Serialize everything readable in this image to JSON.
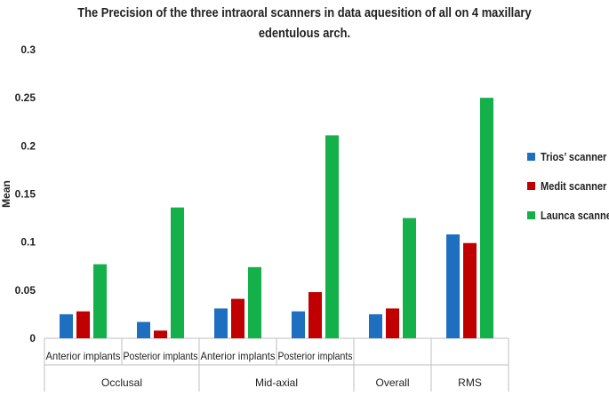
{
  "chart_data": {
    "type": "bar",
    "title_lines": [
      "The Precision of the three intraoral scanners in data aquesition of all on 4 maxillary",
      "edentulous arch."
    ],
    "ylabel": "Mean",
    "xlabel": "",
    "ylim": [
      0,
      0.3
    ],
    "yticks": [
      "0",
      "0.05",
      "0.1",
      "0.15",
      "0.2",
      "0.25",
      "0.3"
    ],
    "categories": [
      "Anterior implants",
      "Posterior implants",
      "Anterior implants",
      "Posterior implants",
      "",
      ""
    ],
    "groups": [
      {
        "label": "Occlusal",
        "span": 2
      },
      {
        "label": "Mid-axial",
        "span": 2
      },
      {
        "label": "Overall",
        "span": 1
      },
      {
        "label": "RMS",
        "span": 1
      }
    ],
    "series": [
      {
        "name": "Trios’ scanner",
        "color": "#1f6fc0",
        "values": [
          0.025,
          0.017,
          0.031,
          0.028,
          0.025,
          0.108
        ]
      },
      {
        "name": "Medit scanner",
        "color": "#c00000",
        "values": [
          0.028,
          0.008,
          0.041,
          0.048,
          0.031,
          0.099
        ]
      },
      {
        "name": "Launca scanner",
        "color": "#14b04a",
        "values": [
          0.077,
          0.136,
          0.074,
          0.211,
          0.125,
          0.25
        ]
      }
    ],
    "grid": false,
    "legend": "right"
  }
}
